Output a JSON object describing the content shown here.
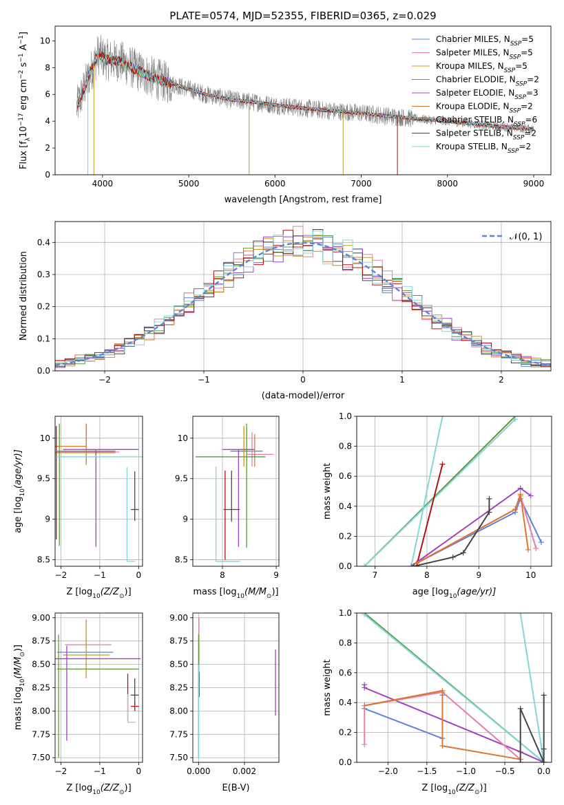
{
  "figure": {
    "title": "PLATE=0574, MJD=52355, FIBERID=0365, z=0.029"
  },
  "models": [
    {
      "name": "Chabrier MILES",
      "nssp": "5",
      "color": "#5b84d8"
    },
    {
      "name": "Salpeter MILES",
      "nssp": "5",
      "color": "#e67ca8"
    },
    {
      "name": "Kroupa MILES",
      "nssp": "5",
      "color": "#c8961e"
    },
    {
      "name": "Chabrier ELODIE",
      "nssp": "2",
      "color": "#5a9a30"
    },
    {
      "name": "Salpeter ELODIE",
      "nssp": "3",
      "color": "#a040c0"
    },
    {
      "name": "Kroupa ELODIE",
      "nssp": "2",
      "color": "#dd7530"
    },
    {
      "name": "Chabrier STELIB",
      "nssp": "6",
      "color": "#444444"
    },
    {
      "name": "Salpeter STELIB",
      "nssp": "2",
      "color": "#b01010"
    },
    {
      "name": "Kroupa STELIB",
      "nssp": "2",
      "color": "#7fd7d7"
    }
  ],
  "chart_data": [
    {
      "id": "spectrum",
      "type": "line",
      "xlabel": "wavelength [Angstrom, rest frame]",
      "ylabel": "Flux [f",
      "ylabel_parts": [
        "Flux [f",
        "λ",
        "10",
        "−17",
        " erg cm",
        "−2",
        " s",
        "−1",
        " A",
        "−1",
        "]"
      ],
      "xlim": [
        3450,
        9200
      ],
      "ylim": [
        0,
        11.1
      ],
      "xticks": [
        4000,
        5000,
        6000,
        7000,
        8000,
        9000
      ],
      "yticks": [
        0,
        2,
        4,
        6,
        8,
        10
      ],
      "grid": false,
      "legend": "top-right",
      "data_color": "#808080",
      "x_range": [
        3700,
        9000
      ],
      "continuum": {
        "x": [
          3700,
          3850,
          3950,
          4050,
          4200,
          4400,
          4600,
          4800,
          5000,
          5200,
          5500,
          5800,
          6000,
          6300,
          6600,
          7000,
          7300,
          7600,
          8000,
          8300,
          8600,
          9000
        ],
        "y": [
          5.0,
          7.5,
          9.0,
          8.6,
          8.5,
          7.8,
          7.2,
          6.8,
          6.4,
          6.0,
          5.6,
          5.4,
          5.2,
          5.0,
          4.8,
          4.6,
          4.4,
          4.2,
          4.0,
          3.8,
          3.6,
          3.4
        ]
      },
      "model_spikes": [
        {
          "model": 8,
          "x": 3830,
          "y": 0
        },
        {
          "model": 2,
          "x": 3900,
          "y": 0
        },
        {
          "model": 2,
          "x": 5700,
          "y": 0
        },
        {
          "model": 2,
          "x": 6790,
          "y": 0
        },
        {
          "model": 7,
          "x": 7420,
          "y": 0
        }
      ]
    },
    {
      "id": "residuals",
      "type": "step",
      "xlabel": "(data-model)/error",
      "ylabel": "Normed distribution",
      "xlim": [
        -2.5,
        2.5
      ],
      "ylim": [
        0,
        0.465
      ],
      "xticks": [
        -2,
        -1,
        0,
        1,
        2
      ],
      "yticks": [
        0.0,
        0.1,
        0.2,
        0.3,
        0.4
      ],
      "grid": true,
      "legend": "top-right",
      "legend_label": "𝒩(0, 1)",
      "gauss_color": "#5b84d8",
      "bins_start": -2.5,
      "bin_width": 0.1,
      "nbins": 50
    },
    {
      "id": "age-vs-Z",
      "type": "errorbar",
      "xlabel": "Z [log",
      "xlabel_parts": [
        "Z [log",
        "10",
        "(Z/Z",
        "⊙",
        ")]"
      ],
      "ylabel_parts": [
        "age  [log",
        "10",
        "(age/yr)]"
      ],
      "xlim": [
        -2.15,
        0.1
      ],
      "ylim": [
        8.42,
        10.27
      ],
      "xticks": [
        -2,
        -1,
        0
      ],
      "yticks": [
        8.5,
        9.0,
        9.5,
        10.0
      ],
      "grid": true,
      "points": [
        {
          "model": 0,
          "x": -1.2,
          "xerr": [
            0.9,
            0.6
          ],
          "y": 9.84,
          "yerr": [
            0.0,
            0.0
          ]
        },
        {
          "model": 1,
          "x": -1.3,
          "xerr": [
            0.8,
            0.8
          ],
          "y": 9.83,
          "yerr": [
            0.0,
            0.0
          ]
        },
        {
          "model": 2,
          "x": -1.35,
          "xerr": [
            0.8,
            0.75
          ],
          "y": 9.82,
          "yerr": [
            0.15,
            0.35
          ]
        },
        {
          "model": 3,
          "x": -2.08,
          "xerr": [
            0.0,
            0.0
          ],
          "y": 9.78,
          "yerr": [
            0.0,
            0.0
          ]
        },
        {
          "model": 4,
          "x": -1.1,
          "xerr": [
            0.85,
            1.1
          ],
          "y": 9.86,
          "yerr": [
            1.2,
            0.0
          ]
        },
        {
          "model": 5,
          "x": -1.35,
          "xerr": [
            0.8,
            0.0
          ],
          "y": 9.9,
          "yerr": [
            0.2,
            0.28
          ]
        },
        {
          "model": 6,
          "x": -0.1,
          "xerr": [
            0.1,
            0.1
          ],
          "y": 9.12,
          "yerr": [
            0.14,
            0.47
          ]
        },
        {
          "model": 8,
          "x": -0.3,
          "xerr": [
            0.0,
            0.2
          ],
          "y": 8.48,
          "yerr": [
            0.0,
            1.16
          ]
        },
        {
          "model": 3,
          "x": -2.04,
          "xerr": [
            0.0,
            0.0
          ],
          "y": 9.3,
          "yerr": [
            0.63,
            0.88
          ]
        },
        {
          "model": 7,
          "x": -2.12,
          "xerr": [
            0.0,
            0.0
          ],
          "y": 9.45,
          "yerr": [
            0.7,
            0.7
          ]
        },
        {
          "model": 8,
          "x": -1.0,
          "xerr": [
            1.12,
            1.12
          ],
          "y": 9.77,
          "yerr": [
            0.0,
            0.0
          ]
        }
      ]
    },
    {
      "id": "age-vs-mass",
      "type": "errorbar",
      "xlabel_parts": [
        "mass [log",
        "10",
        "(M/M",
        "⊙",
        ")]"
      ],
      "xlim": [
        7.45,
        9.05
      ],
      "ylim": [
        8.42,
        10.27
      ],
      "xticks": [
        8,
        9
      ],
      "yticks": [
        8.5,
        9.0,
        9.5,
        10.0
      ],
      "grid": true,
      "points": [
        {
          "model": 0,
          "x": 8.45,
          "xerr": [
            0.3,
            0.3
          ],
          "y": 9.84,
          "yerr": [
            0.0,
            0.0
          ]
        },
        {
          "model": 1,
          "x": 8.55,
          "xerr": [
            0.1,
            0.4
          ],
          "y": 9.8,
          "yerr": [
            0.15,
            0.27
          ]
        },
        {
          "model": 2,
          "x": 8.4,
          "xerr": [
            0.0,
            0.0
          ],
          "y": 9.85,
          "yerr": [
            0.2,
            0.3
          ]
        },
        {
          "model": 3,
          "x": 8.45,
          "xerr": [
            0.0,
            0.0
          ],
          "y": 9.5,
          "yerr": [
            0.85,
            0.68
          ]
        },
        {
          "model": 4,
          "x": 8.3,
          "xerr": [
            0.3,
            0.3
          ],
          "y": 9.86,
          "yerr": [
            1.2,
            0.0
          ]
        },
        {
          "model": 5,
          "x": 8.6,
          "xerr": [
            0.0,
            0.0
          ],
          "y": 9.85,
          "yerr": [
            0.2,
            0.2
          ]
        },
        {
          "model": 6,
          "x": 8.17,
          "xerr": [
            0.15,
            0.15
          ],
          "y": 9.12,
          "yerr": [
            0.15,
            0.48
          ]
        },
        {
          "model": 7,
          "x": 8.05,
          "xerr": [
            0.0,
            0.0
          ],
          "y": 9.12,
          "yerr": [
            0.62,
            0.48
          ]
        },
        {
          "model": 8,
          "x": 7.88,
          "xerr": [
            0.0,
            0.45
          ],
          "y": 8.48,
          "yerr": [
            0.0,
            1.17
          ]
        },
        {
          "model": 3,
          "x": 8.1,
          "xerr": [
            0.6,
            0.7
          ],
          "y": 9.77,
          "yerr": [
            0.0,
            0.0
          ]
        }
      ]
    },
    {
      "id": "weight-vs-age",
      "type": "line",
      "xlabel_parts": [
        "age  [log",
        "10",
        "(age/yr)]"
      ],
      "ylabel": "mass weight",
      "xlim": [
        6.65,
        10.4
      ],
      "ylim": [
        0,
        1.0
      ],
      "xticks": [
        7,
        8,
        9,
        10
      ],
      "yticks": [
        0.0,
        0.2,
        0.4,
        0.6,
        0.8,
        1.0
      ],
      "grid": true,
      "series": [
        {
          "model": 3,
          "x": [
            6.8,
            9.7
          ],
          "y": [
            0.0,
            1.0
          ]
        },
        {
          "model": 8,
          "x": [
            6.8,
            9.7
          ],
          "y": [
            0.0,
            0.98
          ]
        },
        {
          "model": 8,
          "x": [
            7.7,
            8.3
          ],
          "y": [
            0.0,
            1.0
          ]
        },
        {
          "model": 7,
          "x": [
            7.8,
            8.3
          ],
          "y": [
            0.0,
            0.68
          ]
        },
        {
          "model": 4,
          "x": [
            7.7,
            9.8,
            10.0
          ],
          "y": [
            0.0,
            0.52,
            0.47
          ]
        },
        {
          "model": 0,
          "x": [
            7.8,
            9.7,
            9.8,
            10.2
          ],
          "y": [
            0.02,
            0.36,
            0.45,
            0.16
          ]
        },
        {
          "model": 1,
          "x": [
            7.8,
            9.7,
            9.8,
            10.1
          ],
          "y": [
            0.02,
            0.38,
            0.47,
            0.12
          ]
        },
        {
          "model": 5,
          "x": [
            7.8,
            9.7,
            9.8,
            9.95
          ],
          "y": [
            0.02,
            0.38,
            0.48,
            0.11
          ]
        },
        {
          "model": 6,
          "x": [
            7.75,
            8.5,
            8.7,
            9.2,
            9.2
          ],
          "y": [
            0.0,
            0.06,
            0.09,
            0.36,
            0.45
          ]
        }
      ]
    },
    {
      "id": "mass-vs-Z",
      "type": "errorbar",
      "xlabel_parts": [
        "Z [log",
        "10",
        "(Z/Z",
        "⊙",
        ")]"
      ],
      "ylabel_parts": [
        "mass [log",
        "10",
        "(M/M",
        "⊙",
        ")]"
      ],
      "xlim": [
        -2.15,
        0.1
      ],
      "ylim": [
        7.45,
        9.05
      ],
      "xticks": [
        -2,
        -1,
        0
      ],
      "yticks": [
        7.5,
        7.75,
        8.0,
        8.25,
        8.5,
        8.75,
        9.0
      ],
      "ytick_labels": [
        "7.50",
        "7.75",
        "8.00",
        "8.25",
        "8.50",
        "8.75",
        "9.00"
      ],
      "grid": true,
      "points": [
        {
          "model": 0,
          "x": -1.2,
          "xerr": [
            0.9,
            0.55
          ],
          "y": 8.63,
          "yerr": [
            0.0,
            0.0
          ]
        },
        {
          "model": 1,
          "x": -1.2,
          "xerr": [
            0.7,
            0.5
          ],
          "y": 8.71,
          "yerr": [
            0.0,
            0.0
          ]
        },
        {
          "model": 2,
          "x": -1.35,
          "xerr": [
            0.6,
            0.6
          ],
          "y": 8.6,
          "yerr": [
            0.25,
            0.38
          ]
        },
        {
          "model": 3,
          "x": -1.05,
          "xerr": [
            1.05,
            1.05
          ],
          "y": 8.45,
          "yerr": [
            0.0,
            0.0
          ]
        },
        {
          "model": 4,
          "x": -1.1,
          "xerr": [
            1.15,
            1.15
          ],
          "y": 8.56,
          "yerr": [
            0.0,
            0.0
          ]
        },
        {
          "model": 4,
          "x": -1.85,
          "xerr": [
            0.0,
            0.0
          ],
          "y": 8.3,
          "yerr": [
            0.62,
            0.4
          ]
        },
        {
          "model": 6,
          "x": -0.1,
          "xerr": [
            0.1,
            0.1
          ],
          "y": 8.17,
          "yerr": [
            0.1,
            0.18
          ]
        },
        {
          "model": 7,
          "x": -0.1,
          "xerr": [
            0.1,
            0.1
          ],
          "y": 8.05,
          "yerr": [
            0.05,
            0.05
          ]
        },
        {
          "model": 7,
          "x": -0.28,
          "xerr": [
            0.0,
            0.0
          ],
          "y": 8.15,
          "yerr": [
            0.25,
            0.25
          ]
        },
        {
          "model": 8,
          "x": -0.28,
          "xerr": [
            0.0,
            0.2
          ],
          "y": 7.88,
          "yerr": [
            0.0,
            0.3
          ]
        },
        {
          "model": 3,
          "x": -2.06,
          "xerr": [
            0.0,
            0.0
          ],
          "y": 8.2,
          "yerr": [
            0.7,
            0.62
          ]
        }
      ]
    },
    {
      "id": "mass-vs-ebv",
      "type": "errorbar",
      "xlabel": "E(B-V)",
      "xlim": [
        -0.00025,
        0.0035
      ],
      "ylim": [
        7.45,
        9.05
      ],
      "xticks": [
        0.0,
        0.002
      ],
      "xtick_labels": [
        "0.000",
        "0.002"
      ],
      "yticks": [
        7.5,
        7.75,
        8.0,
        8.25,
        8.5,
        8.75,
        9.0
      ],
      "ytick_labels": [
        "7.50",
        "7.75",
        "8.00",
        "8.25",
        "8.50",
        "8.75",
        "9.00"
      ],
      "grid": true,
      "points": [
        {
          "model": 1,
          "x": 2e-05,
          "xerr": [
            0,
            0
          ],
          "y": 8.6,
          "yerr": [
            0.2,
            0.4
          ]
        },
        {
          "model": 7,
          "x": 3e-05,
          "xerr": [
            0,
            0
          ],
          "y": 8.3,
          "yerr": [
            0.15,
            0.12
          ]
        },
        {
          "model": 3,
          "x": 0.0,
          "xerr": [
            0,
            0
          ],
          "y": 8.2,
          "yerr": [
            0.7,
            0.62
          ]
        },
        {
          "model": 8,
          "x": 1e-05,
          "xerr": [
            0,
            0
          ],
          "y": 8.0,
          "yerr": [
            0.5,
            0.5
          ]
        },
        {
          "model": 4,
          "x": 0.00335,
          "xerr": [
            0,
            0
          ],
          "y": 8.3,
          "yerr": [
            0.35,
            0.36
          ]
        }
      ]
    },
    {
      "id": "weight-vs-Z",
      "type": "line",
      "xlabel_parts": [
        "Z [log",
        "10",
        "(Z/Z",
        "⊙",
        ")]"
      ],
      "ylabel": "mass weight",
      "xlim": [
        -2.4,
        0.1
      ],
      "ylim": [
        0,
        1.0
      ],
      "xticks": [
        -2.0,
        -1.5,
        -1.0,
        -0.5,
        0.0
      ],
      "xtick_labels": [
        "−2.0",
        "−1.5",
        "−1.0",
        "−0.5",
        "0.0"
      ],
      "yticks": [
        0.0,
        0.2,
        0.4,
        0.6,
        0.8,
        1.0
      ],
      "grid": true,
      "series": [
        {
          "model": 3,
          "x": [
            -2.3,
            0.0
          ],
          "y": [
            1.0,
            0.0
          ]
        },
        {
          "model": 8,
          "x": [
            -2.3,
            0.0
          ],
          "y": [
            0.99,
            0.0
          ]
        },
        {
          "model": 8,
          "x": [
            -0.3,
            0.0
          ],
          "y": [
            1.0,
            0.0
          ]
        },
        {
          "model": 4,
          "x": [
            -2.3,
            -2.3,
            -0.3,
            0.0
          ],
          "y": [
            0.52,
            0.5,
            0.07,
            0.0
          ]
        },
        {
          "model": 0,
          "x": [
            -2.3,
            -1.3,
            -1.3
          ],
          "y": [
            0.36,
            0.16,
            0.45
          ]
        },
        {
          "model": 1,
          "x": [
            -2.3,
            -2.3,
            -1.3,
            -0.3
          ],
          "y": [
            0.12,
            0.38,
            0.47,
            0.02
          ]
        },
        {
          "model": 5,
          "x": [
            -2.3,
            -1.3,
            -1.3,
            -0.3
          ],
          "y": [
            0.38,
            0.48,
            0.11,
            0.02
          ]
        },
        {
          "model": 6,
          "x": [
            -0.3,
            -0.3,
            0.0,
            0.0,
            0.0
          ],
          "y": [
            0.0,
            0.36,
            0.0,
            0.45,
            0.09
          ]
        }
      ]
    }
  ]
}
